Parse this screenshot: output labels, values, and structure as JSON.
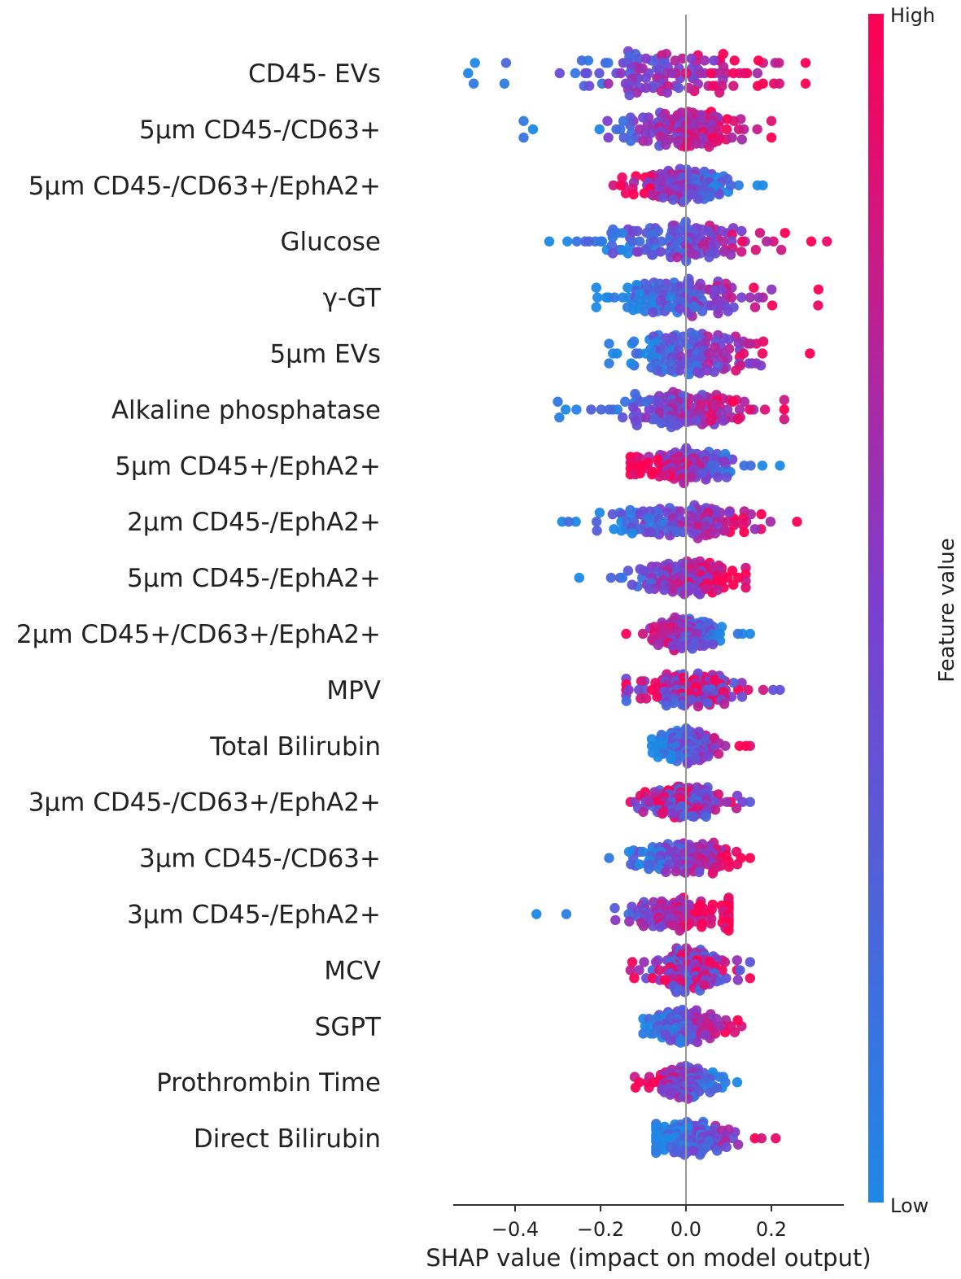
{
  "chart_data": {
    "type": "scatter",
    "subtype": "shap-beeswarm",
    "title": "",
    "xlabel": "SHAP value (impact on model output)",
    "ylabel": "",
    "xlim": [
      -0.55,
      0.37
    ],
    "xticks": [
      -0.4,
      -0.2,
      0.0,
      0.2
    ],
    "xtick_labels": [
      "−0.4",
      "−0.2",
      "0.0",
      "0.2"
    ],
    "zero_line": true,
    "colorbar": {
      "label": "Feature value",
      "high_label": "High",
      "low_label": "Low",
      "low_color": "#1e88e5",
      "mid_color": "#7b3fd0",
      "high_color": "#ff0052"
    },
    "features": [
      {
        "name": "CD45- EVs",
        "min": -0.51,
        "max": 0.28,
        "lowSide": "negative",
        "spread": 1.0
      },
      {
        "name": "5μm CD45-/CD63+",
        "min": -0.38,
        "max": 0.2,
        "lowSide": "negative",
        "spread": 0.8
      },
      {
        "name": "5μm CD45-/CD63+/EphA2+",
        "min": -0.17,
        "max": 0.18,
        "lowSide": "positive",
        "spread": 0.75
      },
      {
        "name": "Glucose",
        "min": -0.32,
        "max": 0.33,
        "lowSide": "negative",
        "spread": 0.9
      },
      {
        "name": "γ-GT",
        "min": -0.21,
        "max": 0.31,
        "lowSide": "negative",
        "spread": 0.85
      },
      {
        "name": "5μm EVs",
        "min": -0.18,
        "max": 0.29,
        "lowSide": "negative",
        "spread": 0.95
      },
      {
        "name": "Alkaline phosphatase",
        "min": -0.3,
        "max": 0.23,
        "lowSide": "negative",
        "spread": 0.8
      },
      {
        "name": "5μm CD45+/EphA2+",
        "min": -0.13,
        "max": 0.22,
        "lowSide": "positive",
        "spread": 0.8
      },
      {
        "name": "2μm CD45-/EphA2+",
        "min": -0.29,
        "max": 0.26,
        "lowSide": "negative",
        "spread": 0.75
      },
      {
        "name": "5μm CD45-/EphA2+",
        "min": -0.25,
        "max": 0.14,
        "lowSide": "negative",
        "spread": 0.75
      },
      {
        "name": "2μm CD45+/CD63+/EphA2+",
        "min": -0.14,
        "max": 0.15,
        "lowSide": "positive",
        "spread": 0.75
      },
      {
        "name": "MPV",
        "min": -0.14,
        "max": 0.22,
        "lowSide": "mixed",
        "spread": 0.75
      },
      {
        "name": "Total Bilirubin",
        "min": -0.08,
        "max": 0.15,
        "lowSide": "negative",
        "spread": 0.8
      },
      {
        "name": "3μm CD45-/CD63+/EphA2+",
        "min": -0.13,
        "max": 0.15,
        "lowSide": "mixed",
        "spread": 0.7
      },
      {
        "name": "3μm CD45-/CD63+",
        "min": -0.18,
        "max": 0.15,
        "lowSide": "negative",
        "spread": 0.7
      },
      {
        "name": "3μm CD45-/EphA2+",
        "min": -0.35,
        "max": 0.1,
        "lowSide": "negative",
        "spread": 0.75
      },
      {
        "name": "MCV",
        "min": -0.13,
        "max": 0.15,
        "lowSide": "mixed",
        "spread": 1.0
      },
      {
        "name": "SGPT",
        "min": -0.1,
        "max": 0.13,
        "lowSide": "negative",
        "spread": 0.75
      },
      {
        "name": "Prothrombin Time",
        "min": -0.12,
        "max": 0.12,
        "lowSide": "positive",
        "spread": 0.75
      },
      {
        "name": "Direct Bilirubin",
        "min": -0.07,
        "max": 0.21,
        "lowSide": "negative",
        "spread": 0.75
      }
    ]
  }
}
